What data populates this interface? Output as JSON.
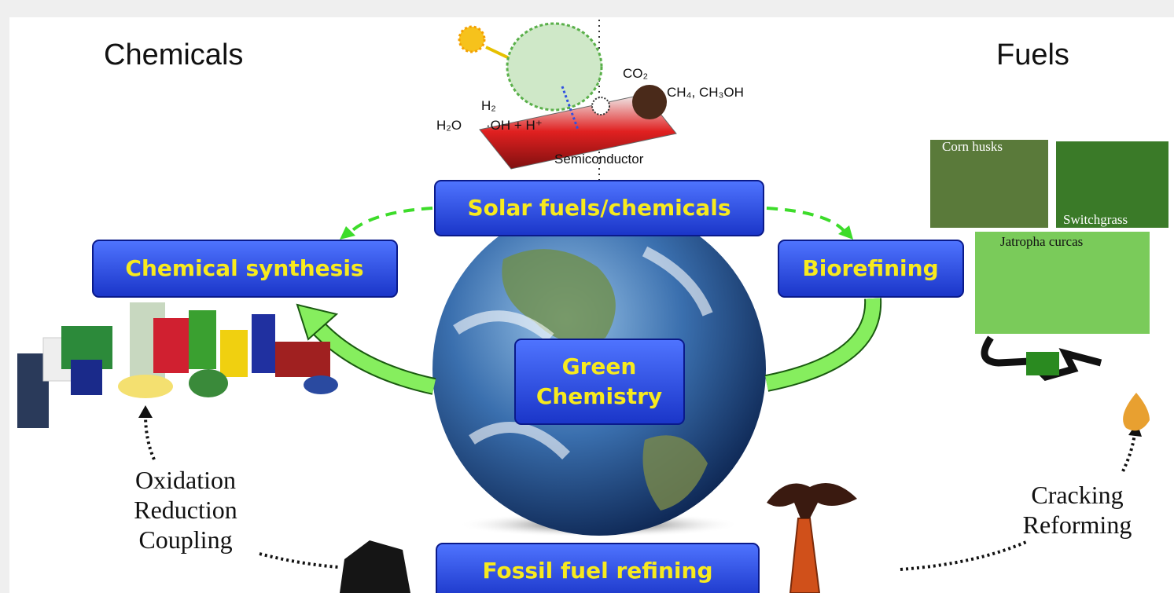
{
  "headings": {
    "left": "Chemicals",
    "right": "Fuels"
  },
  "boxes": {
    "solar": "Solar fuels/chemicals",
    "synthesis": "Chemical synthesis",
    "biorefining": "Biorefining",
    "center": [
      "Green",
      "Chemistry"
    ],
    "fossil": "Fossil fuel refining"
  },
  "photocatalysis": {
    "co2": "CO₂",
    "products": "CH₄, CH₃OH",
    "h2": "H₂",
    "h2o": "H₂O",
    "radicals": "·OH + H⁺",
    "semiconductor": "Semiconductor"
  },
  "chemical_reactions": [
    "Oxidation",
    "Reduction",
    "Coupling"
  ],
  "fuel_reactions": [
    "Cracking",
    "Reforming"
  ],
  "biomass": [
    "Corn husks",
    "Switchgrass",
    "Jatropha curcas"
  ]
}
